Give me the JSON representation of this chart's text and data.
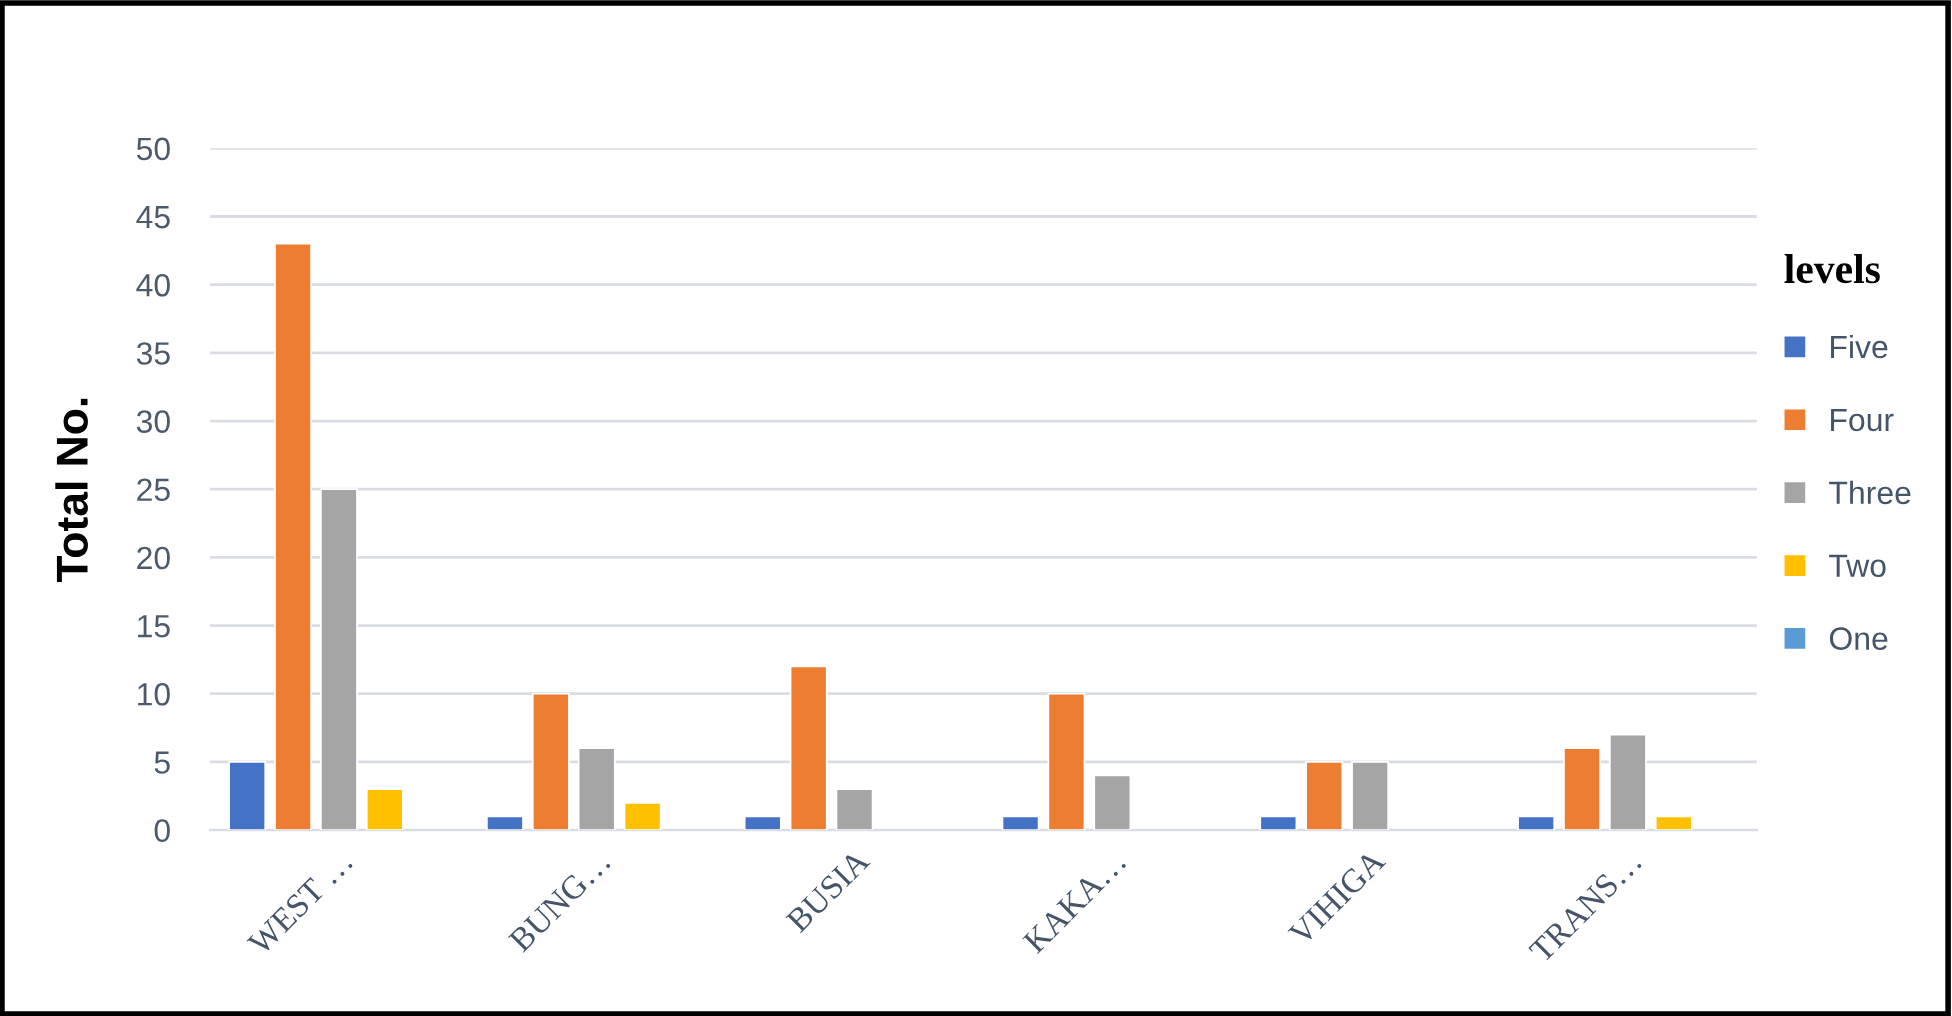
{
  "chart_data": {
    "type": "bar",
    "ylabel": "Total No.",
    "legend_title": "levels",
    "categories": [
      "WEST …",
      "BUNG…",
      "BUSIA",
      "KAKA…",
      "VIHIGA",
      "TRANS…"
    ],
    "series": [
      {
        "name": "Five",
        "color": "#4472c4",
        "values": [
          5,
          1,
          1,
          1,
          1,
          1
        ]
      },
      {
        "name": "Four",
        "color": "#ed7d31",
        "values": [
          43,
          10,
          12,
          10,
          5,
          6
        ]
      },
      {
        "name": "Three",
        "color": "#a5a5a5",
        "values": [
          25,
          6,
          3,
          4,
          5,
          7
        ]
      },
      {
        "name": "Two",
        "color": "#ffc000",
        "values": [
          3,
          2,
          null,
          null,
          null,
          1
        ]
      },
      {
        "name": "One",
        "color": "#5b9bd5",
        "values": [
          null,
          null,
          null,
          null,
          null,
          null
        ]
      }
    ],
    "ylim": [
      0,
      50
    ],
    "yticks": [
      0,
      5,
      10,
      15,
      20,
      25,
      30,
      35,
      40,
      45,
      50
    ],
    "grid": "y",
    "legend": "right"
  }
}
